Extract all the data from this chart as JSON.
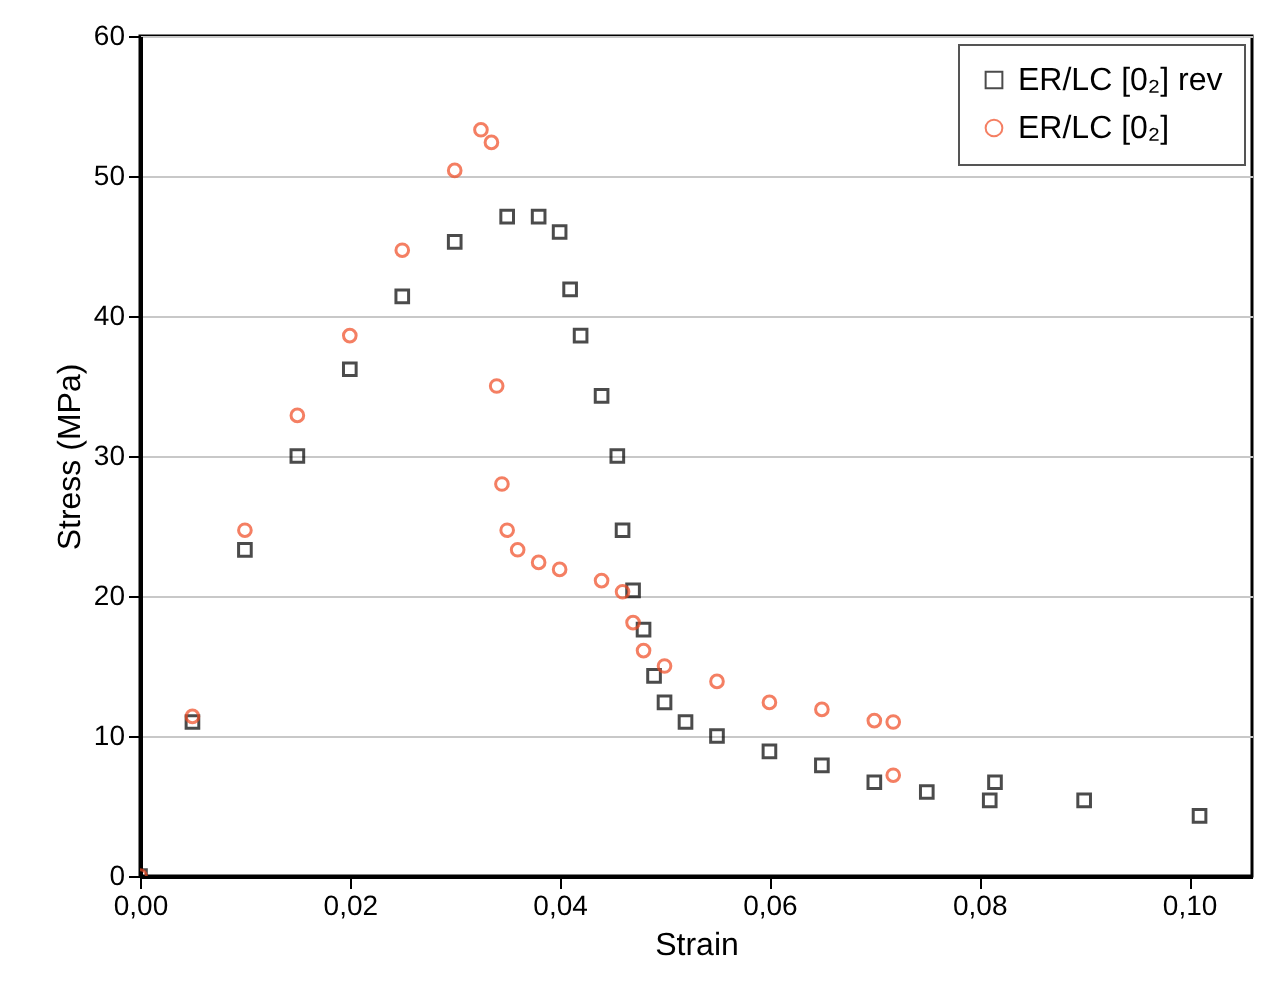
{
  "chart_data": {
    "type": "scatter",
    "xlabel": "Strain",
    "ylabel": "Stress (MPa)",
    "xlim": [
      0,
      0.106
    ],
    "ylim": [
      0,
      60
    ],
    "xticks": [
      {
        "value": 0,
        "label": "0,00"
      },
      {
        "value": 0.02,
        "label": "0,02"
      },
      {
        "value": 0.04,
        "label": "0,04"
      },
      {
        "value": 0.06,
        "label": "0,06"
      },
      {
        "value": 0.08,
        "label": "0,08"
      },
      {
        "value": 0.1,
        "label": "0,10"
      }
    ],
    "yticks": [
      0,
      10,
      20,
      30,
      40,
      50,
      60
    ],
    "grid": "y",
    "legend": "top right",
    "series": [
      {
        "name": "ER/LC [0₂] rev",
        "color": "#000000",
        "marker": "square",
        "x": [
          0,
          0.005,
          0.01,
          0.015,
          0.02,
          0.025,
          0.03,
          0.035,
          0.038,
          0.04,
          0.041,
          0.042,
          0.044,
          0.0455,
          0.046,
          0.047,
          0.048,
          0.049,
          0.05,
          0.052,
          0.055,
          0.06,
          0.065,
          0.07,
          0.075,
          0.081,
          0.0815,
          0.09,
          0.101
        ],
        "values": [
          0,
          11,
          23.3,
          30,
          36.2,
          41.4,
          45.3,
          47.1,
          47.1,
          46,
          41.9,
          38.6,
          34.3,
          30,
          24.7,
          20.4,
          17.6,
          14.3,
          12.4,
          11,
          10,
          8.9,
          7.9,
          6.7,
          6,
          5.4,
          6.7,
          5.4,
          4.3
        ]
      },
      {
        "name": "ER/LC [0₂]",
        "color": "#f04a22",
        "marker": "circle",
        "x": [
          0,
          0.005,
          0.01,
          0.015,
          0.02,
          0.025,
          0.03,
          0.0325,
          0.0335,
          0.034,
          0.0345,
          0.035,
          0.036,
          0.038,
          0.04,
          0.044,
          0.046,
          0.047,
          0.048,
          0.05,
          0.055,
          0.06,
          0.065,
          0.07,
          0.0718,
          0.0718
        ],
        "values": [
          0,
          11.4,
          24.7,
          32.9,
          38.6,
          44.7,
          50.4,
          53.3,
          52.4,
          35,
          28,
          24.7,
          23.3,
          22.4,
          21.9,
          21.1,
          20.3,
          18.1,
          16.1,
          15,
          13.9,
          12.4,
          11.9,
          11.1,
          11,
          7.2
        ]
      }
    ]
  }
}
